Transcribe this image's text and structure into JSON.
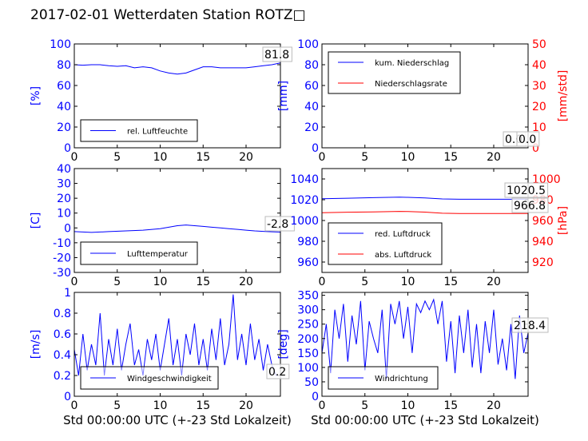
{
  "title": "2017-02-01 Wetterdaten Station ROTZ□",
  "colors": {
    "blue": "#0000ff",
    "red": "#ff0000",
    "black": "#000000",
    "grey": "#7f7f7f"
  },
  "chart_data": [
    {
      "id": "humidity",
      "type": "line",
      "xlim": [
        0,
        24
      ],
      "xticks": [
        0,
        5,
        10,
        15,
        20
      ],
      "ylim": [
        0,
        100
      ],
      "yticks": [
        0,
        20,
        40,
        60,
        80,
        100
      ],
      "ylabel": "[%]",
      "ylabel_color": "#0000ff",
      "tick_color": "#0000ff",
      "xlabel": "",
      "series": [
        {
          "name": "rel. Luftfeuchte",
          "color": "#0000ff",
          "x": [
            0,
            1,
            2,
            3,
            4,
            5,
            6,
            7,
            8,
            9,
            10,
            11,
            12,
            13,
            14,
            15,
            16,
            17,
            18,
            19,
            20,
            21,
            22,
            23,
            24
          ],
          "y": [
            80,
            79.5,
            80,
            80,
            79,
            78.5,
            79,
            77,
            78,
            77,
            74,
            72,
            71,
            72,
            75,
            78,
            78,
            77,
            77,
            77,
            77,
            78,
            79,
            80,
            81.8
          ]
        }
      ],
      "value_labels": [
        "81.8"
      ],
      "legend_loc": "lower-left"
    },
    {
      "id": "precip",
      "type": "line",
      "xlim": [
        0,
        24
      ],
      "xticks": [
        0,
        5,
        10,
        15,
        20
      ],
      "ylim": [
        0,
        100
      ],
      "yticks": [
        0,
        20,
        40,
        60,
        80,
        100
      ],
      "ylabel": "[mm]",
      "ylabel_color": "#0000ff",
      "tick_color": "#0000ff",
      "y2lim": [
        0,
        50
      ],
      "y2ticks": [
        0,
        10,
        20,
        30,
        40,
        50
      ],
      "y2label": "[mm/std]",
      "y2label_color": "#ff0000",
      "xlabel": "",
      "series": [
        {
          "name": "kum. Niederschlag",
          "color": "#0000ff",
          "x": [
            0,
            24
          ],
          "y": [
            0,
            0
          ]
        },
        {
          "name": "Niederschlagsrate",
          "color": "#ff0000",
          "axis": "right",
          "x": [
            0,
            24
          ],
          "y": [
            0,
            0
          ]
        }
      ],
      "value_labels": [
        "0.0",
        "0.0"
      ],
      "legend_loc": "upper-left"
    },
    {
      "id": "temperature",
      "type": "line",
      "xlim": [
        0,
        24
      ],
      "xticks": [
        0,
        5,
        10,
        15,
        20
      ],
      "ylim": [
        -30,
        40
      ],
      "yticks": [
        -30,
        -20,
        -10,
        0,
        10,
        20,
        30,
        40
      ],
      "ylabel": "[C]",
      "ylabel_color": "#0000ff",
      "tick_color": "#0000ff",
      "xlabel": "",
      "series": [
        {
          "name": "Lufttemperatur",
          "color": "#0000ff",
          "x": [
            0,
            2,
            4,
            6,
            8,
            10,
            11,
            12,
            13,
            14,
            15,
            16,
            17,
            18,
            19,
            20,
            21,
            22,
            23,
            24
          ],
          "y": [
            -2.5,
            -3,
            -2.5,
            -2,
            -1.5,
            -0.5,
            0.5,
            1.5,
            2,
            1.5,
            1,
            0.5,
            0,
            -0.5,
            -1,
            -1.5,
            -2,
            -2.3,
            -2.6,
            -2.8
          ]
        }
      ],
      "value_labels": [
        "-2.8"
      ],
      "legend_loc": "lower-left"
    },
    {
      "id": "pressure",
      "type": "line",
      "xlim": [
        0,
        24
      ],
      "xticks": [
        0,
        5,
        10,
        15,
        20
      ],
      "ylim": [
        950,
        1050
      ],
      "yticks": [
        960,
        980,
        1000,
        1020,
        1040
      ],
      "ylabel": "",
      "tick_color": "#0000ff",
      "y2lim": [
        910,
        1010
      ],
      "y2ticks": [
        920,
        940,
        960,
        980,
        1000
      ],
      "y2label": "[hPa]",
      "y2label_color": "#ff0000",
      "xlabel": "",
      "series": [
        {
          "name": "red. Luftdruck",
          "color": "#0000ff",
          "x": [
            0,
            3,
            6,
            9,
            10,
            12,
            14,
            16,
            20,
            24
          ],
          "y": [
            1021,
            1021.5,
            1022,
            1022.5,
            1022.3,
            1021.8,
            1020.8,
            1020.5,
            1020.5,
            1020.5
          ]
        },
        {
          "name": "abs. Luftdruck",
          "color": "#ff0000",
          "axis": "right",
          "x": [
            0,
            3,
            6,
            9,
            10,
            12,
            14,
            16,
            20,
            24
          ],
          "y": [
            967.5,
            968,
            968.3,
            968.8,
            968.6,
            968.1,
            967,
            966.8,
            966.8,
            966.8
          ]
        }
      ],
      "value_labels": [
        "1020.5",
        "966.8"
      ],
      "legend_loc": "lower-left"
    },
    {
      "id": "wind_speed",
      "type": "line",
      "xlim": [
        0,
        24
      ],
      "xticks": [
        0,
        5,
        10,
        15,
        20
      ],
      "ylim": [
        0,
        1.0
      ],
      "yticks": [
        0.0,
        0.2,
        0.4,
        0.6,
        0.8,
        1.0
      ],
      "ylabel": "[m/s]",
      "ylabel_color": "#0000ff",
      "tick_color": "#0000ff",
      "xlabel": "Std 00:00:00 UTC (+-23 Std Lokalzeit)",
      "series": [
        {
          "name": "Windgeschwindigkeit",
          "color": "#0000ff",
          "x": [
            0,
            0.5,
            1,
            1.5,
            2,
            2.5,
            3,
            3.5,
            4,
            4.5,
            5,
            5.5,
            6,
            6.5,
            7,
            7.5,
            8,
            8.5,
            9,
            9.5,
            10,
            10.5,
            11,
            11.5,
            12,
            12.5,
            13,
            13.5,
            14,
            14.5,
            15,
            15.5,
            16,
            16.5,
            17,
            17.5,
            18,
            18.5,
            19,
            19.5,
            20,
            20.5,
            21,
            21.5,
            22,
            22.5,
            23,
            23.5,
            24
          ],
          "y": [
            0.45,
            0.2,
            0.6,
            0.25,
            0.5,
            0.3,
            0.8,
            0.2,
            0.55,
            0.3,
            0.65,
            0.25,
            0.5,
            0.7,
            0.3,
            0.45,
            0.2,
            0.55,
            0.35,
            0.6,
            0.25,
            0.5,
            0.75,
            0.3,
            0.55,
            0.2,
            0.6,
            0.4,
            0.7,
            0.3,
            0.55,
            0.25,
            0.65,
            0.35,
            0.75,
            0.3,
            0.5,
            0.98,
            0.35,
            0.6,
            0.3,
            0.7,
            0.35,
            0.55,
            0.25,
            0.5,
            0.3,
            0.2,
            0.2
          ]
        }
      ],
      "value_labels": [
        "0.2"
      ],
      "legend_loc": "lower-center"
    },
    {
      "id": "wind_direction",
      "type": "line",
      "xlim": [
        0,
        24
      ],
      "xticks": [
        0,
        5,
        10,
        15,
        20
      ],
      "ylim": [
        0,
        360
      ],
      "yticks": [
        0,
        50,
        100,
        150,
        200,
        250,
        300,
        350
      ],
      "ylabel": "[deg]",
      "ylabel_color": "#0000ff",
      "tick_color": "#0000ff",
      "xlabel": "Std 00:00:00 UTC (+-23 Std Lokalzeit)",
      "series": [
        {
          "name": "Windrichtung",
          "color": "#0000ff",
          "x": [
            0,
            0.5,
            1,
            1.5,
            2,
            2.5,
            3,
            3.5,
            4,
            4.5,
            5,
            5.5,
            6,
            6.5,
            7,
            7.5,
            8,
            8.5,
            9,
            9.5,
            10,
            10.5,
            11,
            11.5,
            12,
            12.5,
            13,
            13.5,
            14,
            14.5,
            15,
            15.5,
            16,
            16.5,
            17,
            17.5,
            18,
            18.5,
            19,
            19.5,
            20,
            20.5,
            21,
            21.5,
            22,
            22.5,
            23,
            23.5,
            24
          ],
          "y": [
            150,
            250,
            80,
            300,
            200,
            320,
            120,
            280,
            180,
            330,
            90,
            260,
            200,
            150,
            300,
            60,
            320,
            250,
            330,
            200,
            310,
            150,
            320,
            290,
            330,
            300,
            335,
            250,
            330,
            120,
            260,
            80,
            280,
            150,
            300,
            100,
            250,
            80,
            260,
            150,
            300,
            110,
            200,
            90,
            250,
            60,
            280,
            150,
            218.4
          ]
        }
      ],
      "value_labels": [
        "218.4"
      ],
      "legend_loc": "lower-left"
    }
  ]
}
